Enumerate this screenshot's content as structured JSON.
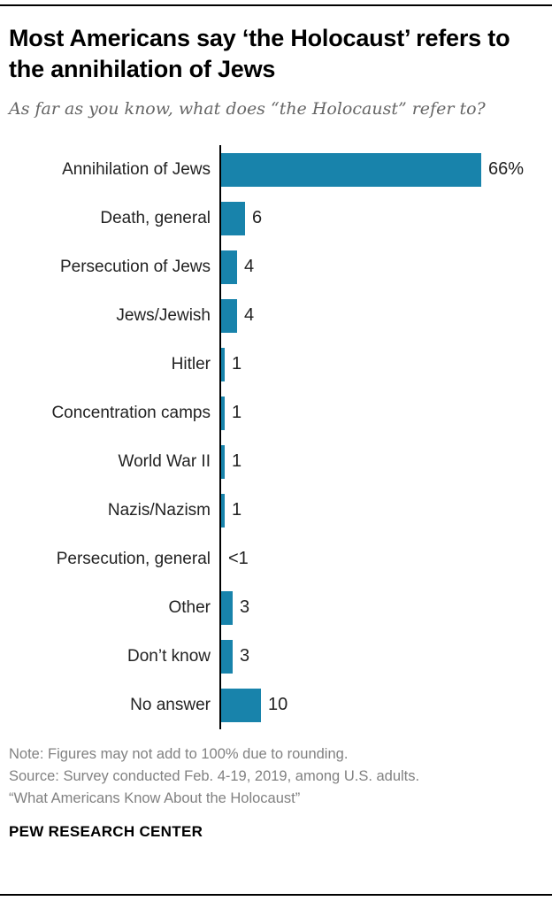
{
  "header": {
    "title": "Most Americans say ‘the Holocaust’ refers to the annihilation of Jews",
    "subtitle": "As far as you know, what does “the Holocaust” refer to?"
  },
  "chart_data": {
    "type": "bar",
    "orientation": "horizontal",
    "categories": [
      "Annihilation of Jews",
      "Death, general",
      "Persecution of Jews",
      "Jews/Jewish",
      "Hitler",
      "Concentration camps",
      "World War II",
      "Nazis/Nazism",
      "Persecution, general",
      "Other",
      "Don’t know",
      "No answer"
    ],
    "values": [
      66,
      6,
      4,
      4,
      1,
      1,
      1,
      1,
      0.5,
      3,
      3,
      10
    ],
    "value_labels": [
      "66%",
      "6",
      "4",
      "4",
      "1",
      "1",
      "1",
      "1",
      "<1",
      "3",
      "3",
      "10"
    ],
    "bar_color": "#1883ab",
    "xlim": [
      0,
      70
    ],
    "grid": false,
    "legend": "none"
  },
  "footer": {
    "note": "Note: Figures may not add to 100% due to rounding.",
    "source": "Source: Survey conducted Feb. 4-19, 2019, among U.S. adults.",
    "study": "“What Americans Know About the Holocaust”",
    "brand": "PEW RESEARCH CENTER"
  }
}
